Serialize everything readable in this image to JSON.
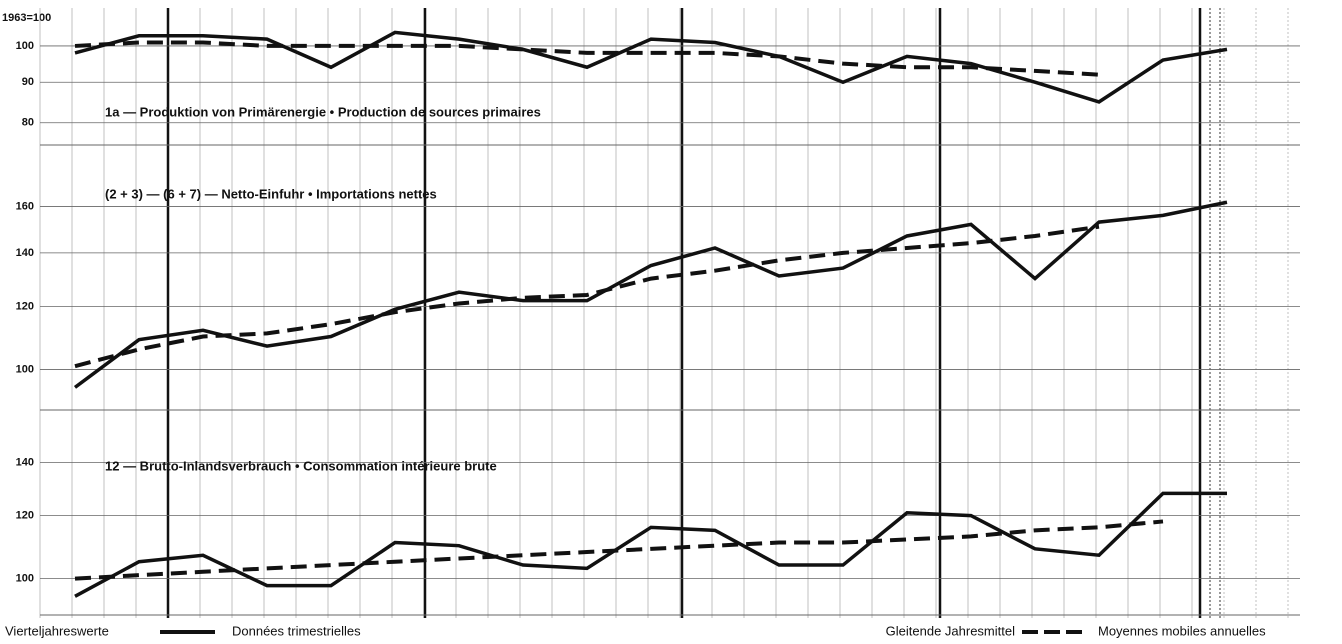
{
  "index_base": "1963=100",
  "legend": [
    {
      "left": "Vierteljahreswerte",
      "right": "Données trimestrielles",
      "style": "solid"
    },
    {
      "left": "Gleitende Jahresmittel",
      "right": "Moyennes mobiles annuelles",
      "style": "dashed"
    }
  ],
  "chart_data": [
    {
      "type": "line",
      "title": "1a — Produktion von Primärenergie • Production de sources primaires",
      "log_scale": true,
      "grid": true,
      "categories": [
        null,
        null,
        null,
        null,
        null,
        null,
        null,
        null,
        null,
        null,
        null,
        null,
        null,
        null,
        null,
        null,
        null,
        null,
        null
      ],
      "ylim": [
        75,
        111
      ],
      "yticks": [
        80,
        90,
        100
      ],
      "series": [
        {
          "style": "solid",
          "color": "#111111",
          "values": [
            98,
            103,
            103,
            102,
            94,
            104,
            102,
            99,
            94,
            102,
            101,
            97,
            90,
            97,
            95,
            90,
            85,
            96,
            99
          ]
        },
        {
          "style": "dashed",
          "color": "#111111",
          "values": [
            100,
            101,
            101,
            100,
            100,
            100,
            100,
            99,
            98,
            98,
            98,
            97,
            95,
            94,
            94,
            93,
            92,
            null,
            null
          ]
        }
      ]
    },
    {
      "type": "line",
      "title": "(2 + 3) — (6 + 7) — Netto-Einfuhr • Importations nettes",
      "log_scale": true,
      "grid": true,
      "categories": [
        null,
        null,
        null,
        null,
        null,
        null,
        null,
        null,
        null,
        null,
        null,
        null,
        null,
        null,
        null,
        null,
        null,
        null,
        null
      ],
      "ylim": [
        89,
        183
      ],
      "yticks": [
        100,
        120,
        140,
        160
      ],
      "series": [
        {
          "style": "solid",
          "color": "#111111",
          "values": [
            95,
            109,
            112,
            107,
            110,
            119,
            125,
            122,
            122,
            135,
            142,
            131,
            134,
            147,
            152,
            130,
            153,
            156,
            162
          ]
        },
        {
          "style": "dashed",
          "color": "#111111",
          "values": [
            101,
            106,
            110,
            111,
            114,
            118,
            121,
            123,
            124,
            130,
            133,
            137,
            140,
            142,
            144,
            147,
            151,
            null,
            null
          ]
        }
      ]
    },
    {
      "type": "line",
      "title": "12 — Brutto-Inlandsverbrauch • Consommation intérieure brute",
      "log_scale": true,
      "grid": true,
      "categories": [
        null,
        null,
        null,
        null,
        null,
        null,
        null,
        null,
        null,
        null,
        null,
        null,
        null,
        null,
        null,
        null,
        null,
        null,
        null
      ],
      "ylim": [
        90,
        156
      ],
      "yticks": [
        100,
        120,
        140
      ],
      "series": [
        {
          "style": "solid",
          "color": "#111111",
          "values": [
            95,
            105,
            107,
            98,
            98,
            111,
            110,
            104,
            103,
            116,
            115,
            104,
            104,
            121,
            120,
            109,
            107,
            128,
            128
          ]
        },
        {
          "style": "dashed",
          "color": "#111111",
          "values": [
            100,
            101,
            102,
            103,
            104,
            105,
            106,
            107,
            108,
            109,
            110,
            111,
            111,
            112,
            113,
            115,
            116,
            118,
            null
          ]
        }
      ]
    }
  ]
}
